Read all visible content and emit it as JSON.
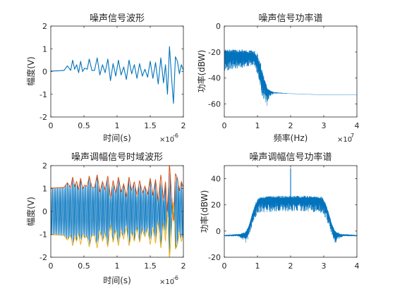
{
  "colors": {
    "blue": "#0072bd",
    "orange": "#d95319",
    "yellow": "#edb120",
    "axis": "#262626"
  },
  "chart_data": [
    {
      "id": "p1",
      "type": "line",
      "title": "噪声信号波形",
      "xlabel": "时间(s)",
      "ylabel": "幅度(V)",
      "x_exponent": "×10",
      "x_exponent_power": "-6",
      "xlim": [
        0,
        2
      ],
      "ylim": [
        -2,
        2
      ],
      "xticks": [
        0,
        0.5,
        1,
        1.5,
        2
      ],
      "xtick_labels": [
        "0",
        "0.5",
        "1",
        "1.5",
        "2"
      ],
      "yticks": [
        -2,
        -1,
        0,
        1,
        2
      ],
      "ytick_labels": [
        "-2",
        "-1",
        "0",
        "1",
        "2"
      ],
      "series": [
        {
          "color": "#0072bd",
          "x": [
            0,
            0.1,
            0.2,
            0.25,
            0.3,
            0.33,
            0.36,
            0.39,
            0.42,
            0.45,
            0.48,
            0.51,
            0.55,
            0.58,
            0.62,
            0.66,
            0.7,
            0.74,
            0.78,
            0.82,
            0.86,
            0.9,
            0.94,
            0.98,
            1.02,
            1.06,
            1.1,
            1.14,
            1.18,
            1.22,
            1.26,
            1.3,
            1.34,
            1.38,
            1.42,
            1.46,
            1.5,
            1.54,
            1.58,
            1.62,
            1.66,
            1.7,
            1.73,
            1.76,
            1.79,
            1.82,
            1.85,
            1.88,
            1.91,
            1.94,
            1.97,
            2.0
          ],
          "y": [
            0.02,
            0.03,
            0.05,
            0.25,
            0.05,
            0.5,
            0.1,
            0.3,
            -0.05,
            0.45,
            0.0,
            0.15,
            0.1,
            0.55,
            0.05,
            0.05,
            0.6,
            -0.15,
            0.3,
            -0.05,
            0.55,
            -0.4,
            0.35,
            -0.2,
            0.5,
            -0.15,
            0.2,
            -0.35,
            0.5,
            -0.1,
            0.3,
            -0.3,
            0.35,
            -0.2,
            0.1,
            -0.25,
            0.45,
            -0.3,
            0.4,
            -0.55,
            0.6,
            -0.5,
            0.3,
            -1.0,
            1.1,
            -0.2,
            -1.4,
            0.65,
            0.45,
            -0.1,
            0.3,
            0.05
          ]
        }
      ]
    },
    {
      "id": "p2",
      "type": "line",
      "title": "噪声信号功率谱",
      "xlabel": "频率(Hz)",
      "ylabel": "功率(dBW)",
      "x_exponent": "×10",
      "x_exponent_power": "7",
      "xlim": [
        0,
        4
      ],
      "ylim": [
        -70,
        0
      ],
      "xticks": [
        0,
        1,
        2,
        3,
        4
      ],
      "xtick_labels": [
        "0",
        "1",
        "2",
        "3",
        "4"
      ],
      "yticks": [
        -60,
        -40,
        -20,
        0
      ],
      "ytick_labels": [
        "-60",
        "-40",
        "-20",
        "0"
      ],
      "series": [
        {
          "color": "#0072bd",
          "band_min": [
            [
              0,
              -35
            ],
            [
              0.3,
              -33
            ],
            [
              0.6,
              -32
            ],
            [
              0.9,
              -30
            ],
            [
              1.0,
              -38
            ],
            [
              1.15,
              -55
            ],
            [
              1.3,
              -62
            ],
            [
              1.35,
              -55
            ],
            [
              1.5,
              -52
            ],
            [
              2.0,
              -52
            ],
            [
              3.0,
              -53
            ],
            [
              4.0,
              -53
            ]
          ],
          "band_max": [
            [
              0,
              -18
            ],
            [
              0.3,
              -18
            ],
            [
              0.6,
              -18
            ],
            [
              0.9,
              -19
            ],
            [
              1.0,
              -21
            ],
            [
              1.1,
              -28
            ],
            [
              1.2,
              -38
            ],
            [
              1.3,
              -48
            ],
            [
              1.4,
              -50
            ],
            [
              1.5,
              -51
            ],
            [
              2.0,
              -52
            ],
            [
              3.0,
              -53
            ],
            [
              4.0,
              -53
            ]
          ],
          "mean": [
            [
              0,
              -22
            ],
            [
              0.5,
              -22
            ],
            [
              0.9,
              -23
            ],
            [
              1.0,
              -28
            ],
            [
              1.1,
              -37
            ],
            [
              1.2,
              -44
            ],
            [
              1.3,
              -49
            ],
            [
              1.5,
              -51
            ],
            [
              2.0,
              -52
            ],
            [
              3.0,
              -53
            ],
            [
              4.0,
              -53
            ]
          ]
        }
      ]
    },
    {
      "id": "p3",
      "type": "line",
      "title": "噪声调幅信号时域波形",
      "xlabel": "时间(s)",
      "ylabel": "幅度(V)",
      "x_exponent": "×10",
      "x_exponent_power": "-6",
      "xlim": [
        0,
        2
      ],
      "ylim": [
        -2,
        2
      ],
      "xticks": [
        0,
        0.5,
        1,
        1.5,
        2
      ],
      "xtick_labels": [
        "0",
        "0.5",
        "1",
        "1.5",
        "2"
      ],
      "yticks": [
        -2,
        -1,
        0,
        1,
        2
      ],
      "ytick_labels": [
        "-2",
        "-1",
        "0",
        "1",
        "2"
      ],
      "carrier_cycles": 80,
      "series": [
        {
          "name_color": "orange",
          "color": "#d95319",
          "role": "upper_envelope",
          "x": [
            0,
            0.1,
            0.2,
            0.25,
            0.3,
            0.33,
            0.36,
            0.39,
            0.42,
            0.45,
            0.48,
            0.51,
            0.55,
            0.58,
            0.62,
            0.66,
            0.7,
            0.74,
            0.78,
            0.82,
            0.86,
            0.9,
            0.94,
            0.98,
            1.02,
            1.06,
            1.1,
            1.14,
            1.18,
            1.22,
            1.26,
            1.3,
            1.34,
            1.38,
            1.42,
            1.46,
            1.5,
            1.54,
            1.58,
            1.62,
            1.66,
            1.7,
            1.73,
            1.76,
            1.79,
            1.82,
            1.85,
            1.88,
            1.91,
            1.94,
            1.97,
            2.0
          ],
          "y": [
            1.02,
            1.03,
            1.05,
            1.25,
            1.05,
            1.5,
            1.1,
            1.3,
            0.95,
            1.45,
            1.0,
            1.15,
            1.1,
            1.55,
            1.05,
            1.05,
            1.6,
            0.85,
            1.3,
            0.95,
            1.55,
            0.6,
            1.35,
            0.8,
            1.5,
            0.85,
            1.2,
            0.65,
            1.5,
            0.9,
            1.3,
            0.7,
            1.35,
            0.8,
            1.1,
            0.75,
            1.45,
            0.7,
            1.4,
            0.45,
            1.6,
            0.5,
            1.3,
            0.0,
            2.1,
            0.8,
            -0.4,
            1.65,
            1.45,
            0.9,
            1.3,
            1.05
          ]
        },
        {
          "color": "#edb120",
          "role": "lower_envelope"
        },
        {
          "color": "#0072bd",
          "role": "modulated_signal"
        }
      ]
    },
    {
      "id": "p4",
      "type": "line",
      "title": "噪声调幅信号功率谱",
      "xlabel": "",
      "ylabel": "功率(dBW)",
      "x_exponent": "",
      "x_exponent_power": "",
      "xlim": [
        0,
        4
      ],
      "ylim": [
        -20,
        50
      ],
      "xticks": [
        0,
        1,
        2,
        3,
        4
      ],
      "xtick_labels": [
        "0",
        "1",
        "2",
        "3",
        "4"
      ],
      "yticks": [
        -20,
        0,
        20,
        40
      ],
      "ytick_labels": [
        "-20",
        "0",
        "20",
        "40"
      ],
      "carrier_peak": [
        2,
        48
      ],
      "series": [
        {
          "color": "#0072bd",
          "band_min": [
            [
              0,
              -4
            ],
            [
              0.4,
              -4
            ],
            [
              0.55,
              -6
            ],
            [
              0.65,
              -10
            ],
            [
              0.75,
              -4
            ],
            [
              0.85,
              4
            ],
            [
              0.95,
              10
            ],
            [
              1.05,
              14
            ],
            [
              1.5,
              15
            ],
            [
              2.0,
              15
            ],
            [
              2.5,
              15
            ],
            [
              2.95,
              14
            ],
            [
              3.05,
              10
            ],
            [
              3.15,
              4
            ],
            [
              3.25,
              -4
            ],
            [
              3.35,
              -10
            ],
            [
              3.45,
              -6
            ],
            [
              3.6,
              -4
            ],
            [
              4.0,
              -4
            ]
          ],
          "band_max": [
            [
              0,
              -3
            ],
            [
              0.5,
              -2
            ],
            [
              0.65,
              0
            ],
            [
              0.75,
              5
            ],
            [
              0.85,
              14
            ],
            [
              0.95,
              22
            ],
            [
              1.05,
              26
            ],
            [
              1.5,
              27
            ],
            [
              2.5,
              27
            ],
            [
              2.95,
              26
            ],
            [
              3.05,
              22
            ],
            [
              3.15,
              14
            ],
            [
              3.25,
              5
            ],
            [
              3.35,
              0
            ],
            [
              3.5,
              -2
            ],
            [
              4.0,
              -3
            ]
          ],
          "mean": [
            [
              0,
              -3.5
            ],
            [
              0.6,
              -3
            ],
            [
              0.7,
              0
            ],
            [
              0.8,
              8
            ],
            [
              0.9,
              16
            ],
            [
              1.0,
              22
            ],
            [
              1.1,
              24
            ],
            [
              2.0,
              24
            ],
            [
              2.9,
              24
            ],
            [
              3.0,
              22
            ],
            [
              3.1,
              16
            ],
            [
              3.2,
              8
            ],
            [
              3.3,
              0
            ],
            [
              3.4,
              -3
            ],
            [
              4.0,
              -3.5
            ]
          ]
        }
      ]
    }
  ]
}
